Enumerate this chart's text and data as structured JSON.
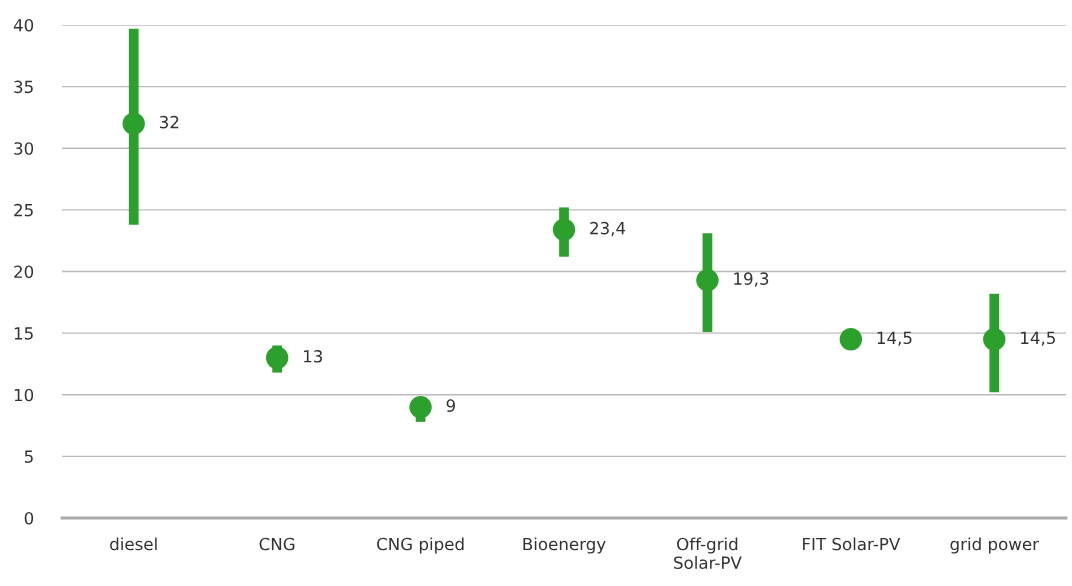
{
  "chart_data": {
    "type": "scatter",
    "categories": [
      "diesel",
      "CNG",
      "CNG piped",
      "Bioenergy",
      "Off-grid\nSolar-PV",
      "FIT Solar-PV",
      "grid power"
    ],
    "values": [
      32,
      13,
      9,
      23.4,
      19.3,
      14.5,
      14.5
    ],
    "errors": [
      [
        23.8,
        39.7
      ],
      [
        11.8,
        14.0
      ],
      [
        7.8,
        9.8
      ],
      [
        21.2,
        25.2
      ],
      [
        15.1,
        23.1
      ],
      null,
      [
        10.2,
        18.2
      ]
    ],
    "value_labels": [
      "32",
      "13",
      "9",
      "23,4",
      "19,3",
      "14,5",
      "14,5"
    ],
    "color": "#2ca02c",
    "marker": "circle",
    "ylim": [
      0,
      40
    ],
    "yticks": [
      0,
      5,
      10,
      15,
      20,
      25,
      30,
      35,
      40
    ],
    "grid": "y"
  }
}
